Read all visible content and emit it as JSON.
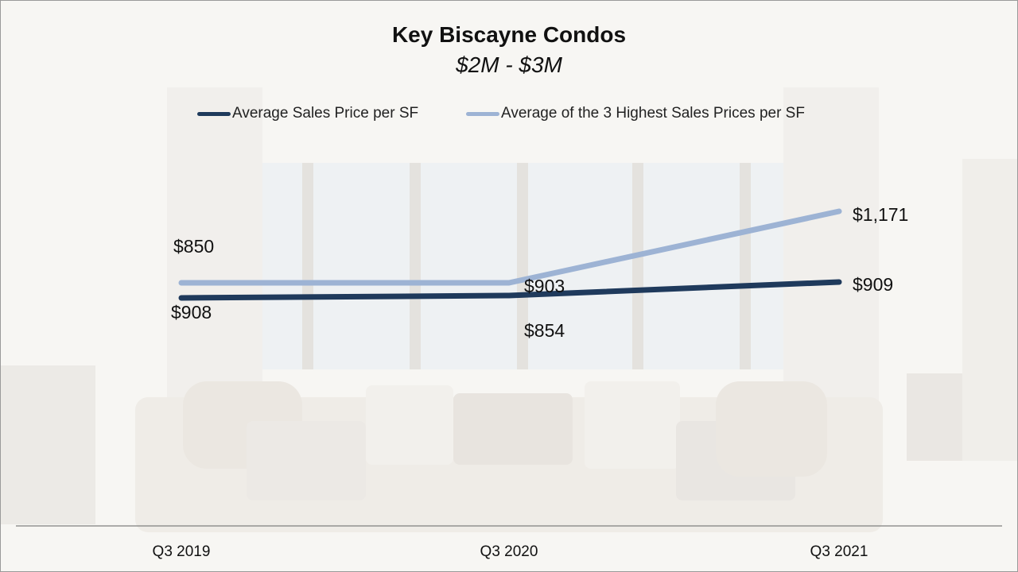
{
  "colors": {
    "series_avg": "#1f3a5c",
    "series_top3": "#9db3d4",
    "axis": "#7f7f7f"
  },
  "chart_data": {
    "type": "line",
    "title": "Key Biscayne Condos",
    "subtitle": "$2M - $3M",
    "categories": [
      "Q3 2019",
      "Q3 2020",
      "Q3 2021"
    ],
    "series": [
      {
        "name": "Average Sales Price per SF",
        "values": [
          850,
          854,
          909
        ],
        "labels": [
          "$850",
          "$854",
          "$909"
        ]
      },
      {
        "name": "Average of the 3 Highest Sales Prices per SF",
        "values": [
          908,
          903,
          1171
        ],
        "labels": [
          "$908",
          "$903",
          "$1,171"
        ]
      }
    ],
    "legend_position": "top",
    "grid": false
  }
}
